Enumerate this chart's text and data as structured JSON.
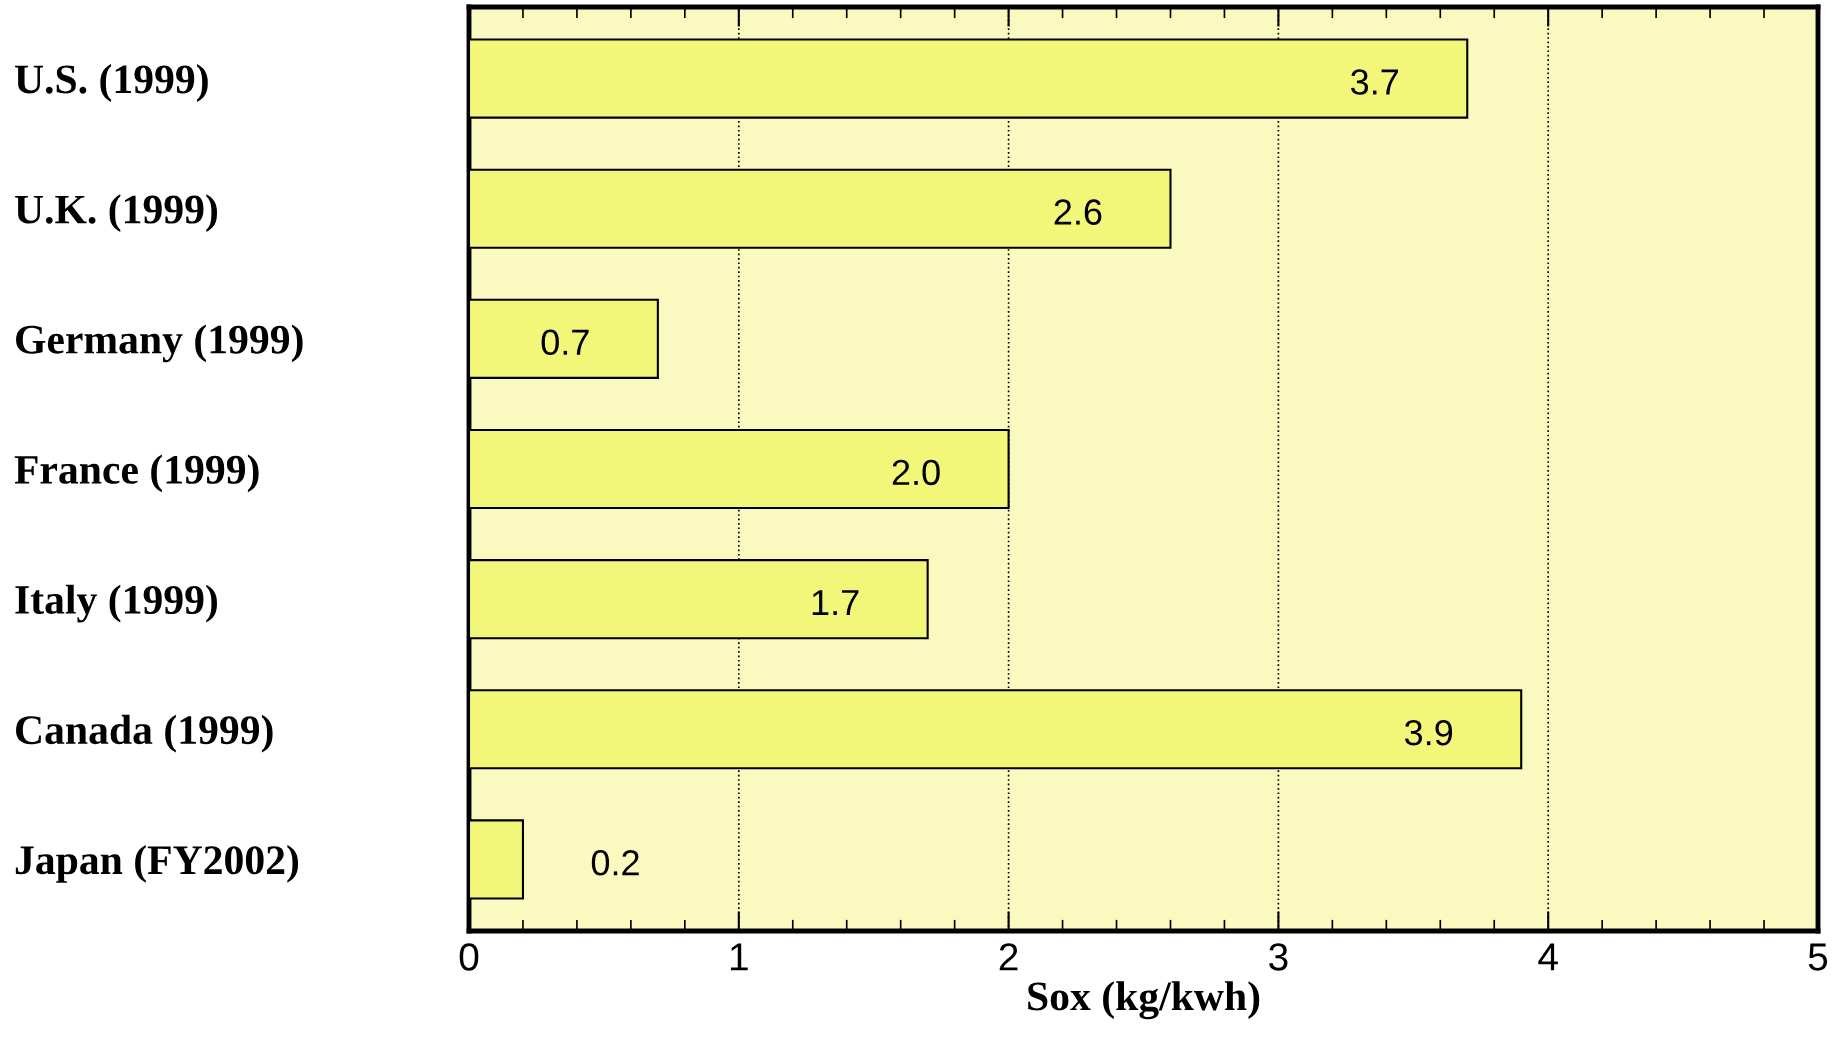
{
  "chart_data": {
    "type": "bar",
    "orientation": "horizontal",
    "xlabel": "Sox (kg/kwh)",
    "categories": [
      "U.S. (1999)",
      "U.K. (1999)",
      "Germany (1999)",
      "France (1999)",
      "Italy (1999)",
      "Canada (1999)",
      "Japan (FY2002)"
    ],
    "values": [
      3.7,
      2.6,
      0.7,
      2.0,
      1.7,
      3.9,
      0.2
    ],
    "value_labels": [
      "3.7",
      "2.6",
      "0.7",
      "2.0",
      "1.7",
      "3.9",
      "0.2"
    ],
    "color": "#f2f77a",
    "xlim": [
      0,
      5
    ],
    "xticks": [
      0,
      1,
      2,
      3,
      4,
      5
    ],
    "grid": "x"
  }
}
